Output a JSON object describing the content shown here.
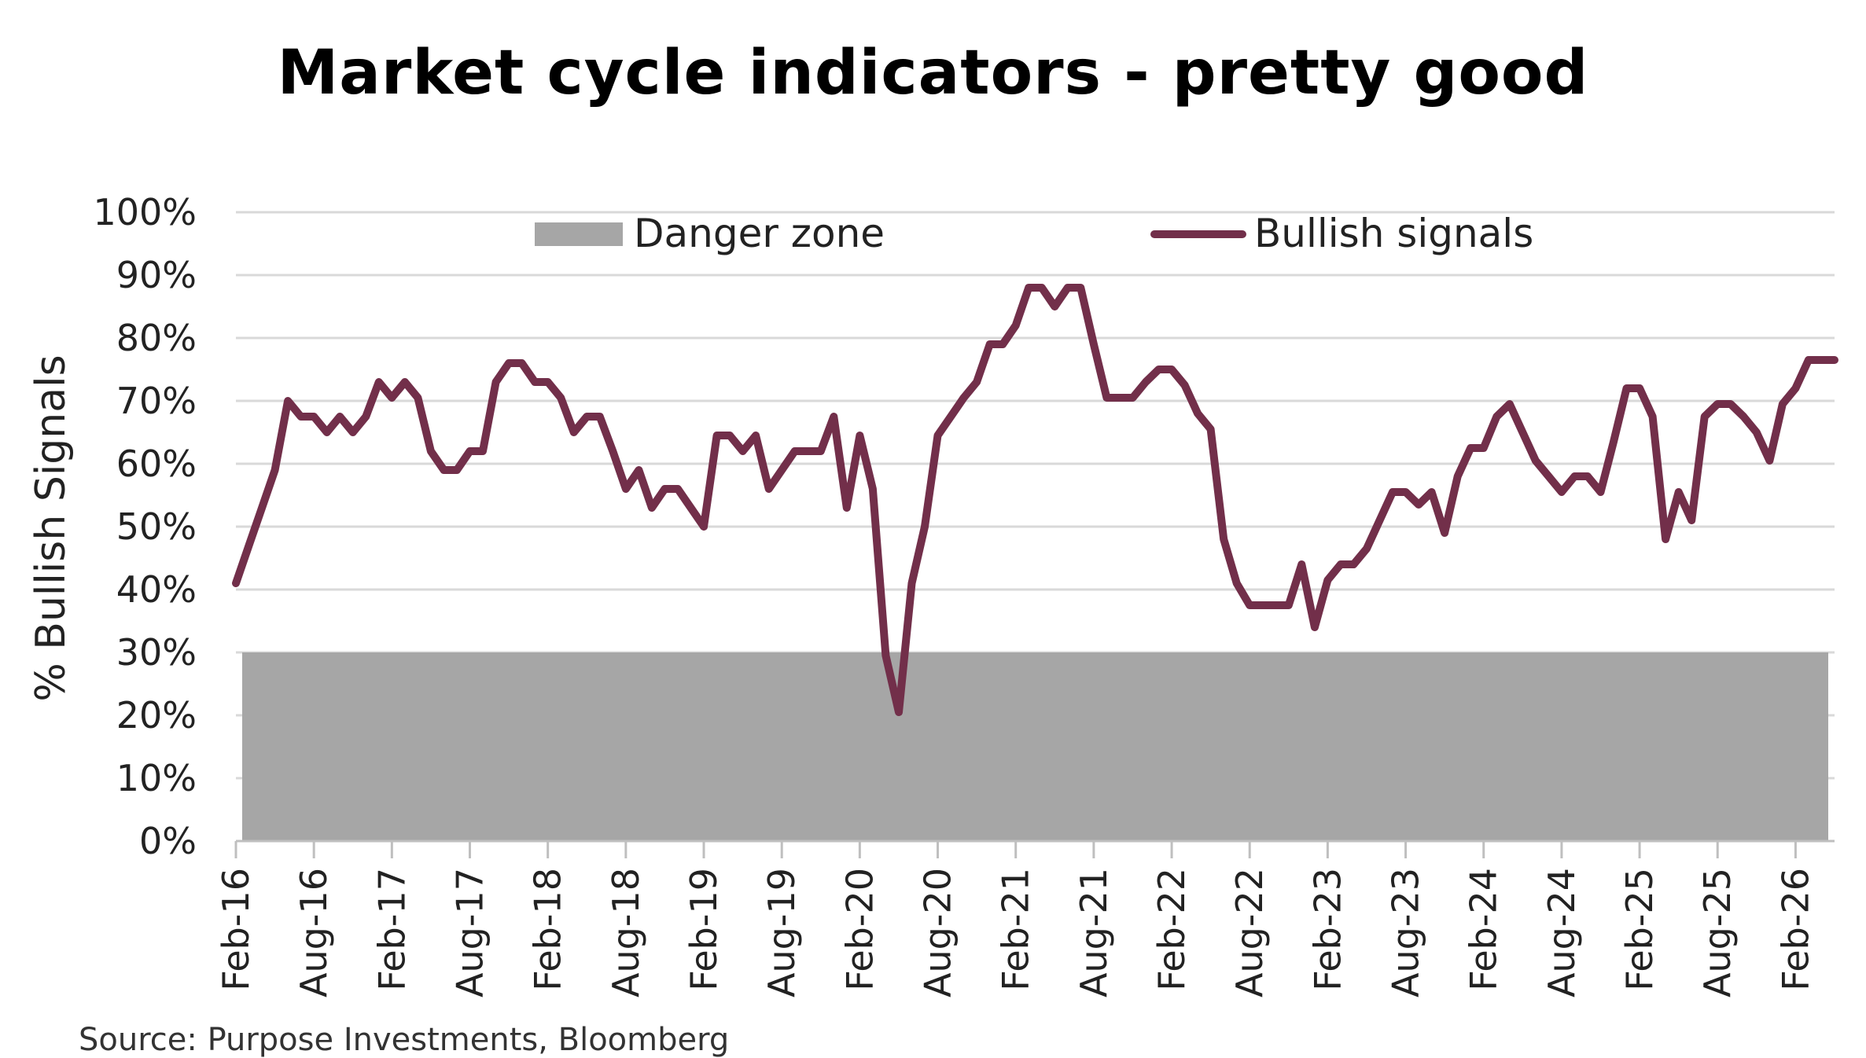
{
  "chart_data": {
    "type": "line",
    "title": "Market cycle indicators - pretty good",
    "ylabel": "% Bullish Signals",
    "xlabel": "",
    "ylim": [
      0,
      100
    ],
    "y_ticks": [
      "0%",
      "10%",
      "20%",
      "30%",
      "40%",
      "50%",
      "60%",
      "70%",
      "80%",
      "90%",
      "100%"
    ],
    "x_ticks": [
      "Feb-16",
      "Aug-16",
      "Feb-17",
      "Aug-17",
      "Feb-18",
      "Aug-18",
      "Feb-19",
      "Aug-19",
      "Feb-20",
      "Aug-20",
      "Feb-21",
      "Aug-21",
      "Feb-22",
      "Aug-22",
      "Feb-23",
      "Aug-23",
      "Feb-24",
      "Aug-24",
      "Feb-25",
      "Aug-25",
      "Feb-26"
    ],
    "x_range": [
      "2016-02",
      "2026-05"
    ],
    "grid": true,
    "legend_position": "top",
    "danger_zone": {
      "name": "Danger zone",
      "from": 0,
      "to": 30,
      "color": "#a6a6a6"
    },
    "series": [
      {
        "name": "Bullish signals",
        "color": "#722f4a",
        "x": [
          "2016-02",
          "2016-03",
          "2016-04",
          "2016-05",
          "2016-06",
          "2016-07",
          "2016-08",
          "2016-09",
          "2016-10",
          "2016-11",
          "2016-12",
          "2017-01",
          "2017-02",
          "2017-03",
          "2017-04",
          "2017-05",
          "2017-06",
          "2017-07",
          "2017-08",
          "2017-09",
          "2017-10",
          "2017-11",
          "2017-12",
          "2018-01",
          "2018-02",
          "2018-03",
          "2018-04",
          "2018-05",
          "2018-06",
          "2018-07",
          "2018-08",
          "2018-09",
          "2018-10",
          "2018-11",
          "2018-12",
          "2019-01",
          "2019-02",
          "2019-03",
          "2019-04",
          "2019-05",
          "2019-06",
          "2019-07",
          "2019-08",
          "2019-09",
          "2019-10",
          "2019-11",
          "2019-12",
          "2020-01",
          "2020-02",
          "2020-03",
          "2020-04",
          "2020-05",
          "2020-06",
          "2020-07",
          "2020-08",
          "2020-09",
          "2020-10",
          "2020-11",
          "2020-12",
          "2021-01",
          "2021-02",
          "2021-03",
          "2021-04",
          "2021-05",
          "2021-06",
          "2021-07",
          "2021-08",
          "2021-09",
          "2021-10",
          "2021-11",
          "2021-12",
          "2022-01",
          "2022-02",
          "2022-03",
          "2022-04",
          "2022-05",
          "2022-06",
          "2022-07",
          "2022-08",
          "2022-09",
          "2022-10",
          "2022-11",
          "2022-12",
          "2023-01",
          "2023-02",
          "2023-03",
          "2023-04",
          "2023-05",
          "2023-06",
          "2023-07",
          "2023-08",
          "2023-09",
          "2023-10",
          "2023-11",
          "2023-12",
          "2024-01",
          "2024-02",
          "2024-03",
          "2024-04",
          "2024-05",
          "2024-06",
          "2024-07",
          "2024-08",
          "2024-09",
          "2024-10",
          "2024-11",
          "2024-12",
          "2025-01",
          "2025-02",
          "2025-03",
          "2025-04",
          "2025-05",
          "2025-06",
          "2025-07",
          "2025-08",
          "2025-09",
          "2025-10",
          "2025-11",
          "2025-12",
          "2026-01",
          "2026-02",
          "2026-03",
          "2026-04",
          "2026-05"
        ],
        "values": [
          41,
          47,
          53,
          59,
          70,
          67.5,
          67.5,
          65,
          67.5,
          65,
          67.5,
          73,
          70.5,
          73,
          70.5,
          62,
          59,
          59,
          62,
          62,
          73,
          76,
          76,
          73,
          73,
          70.5,
          65,
          67.5,
          67.5,
          62,
          56,
          59,
          53,
          56,
          56,
          53,
          50,
          64.5,
          64.5,
          62,
          64.5,
          56,
          59,
          62,
          62,
          62,
          67.5,
          53,
          64.5,
          56,
          29.5,
          20.5,
          41,
          50,
          64.5,
          67.5,
          70.5,
          73,
          79,
          79,
          82,
          88,
          88,
          85,
          88,
          88,
          79,
          70.5,
          70.5,
          70.5,
          73,
          75,
          75,
          72.5,
          68,
          65.5,
          48,
          41,
          37.5,
          37.5,
          37.5,
          37.5,
          44,
          34,
          41.5,
          44,
          44,
          46.5,
          51,
          55.5,
          55.5,
          53.5,
          55.5,
          49,
          58,
          62.5,
          62.5,
          67.5,
          69.5,
          65,
          60.5,
          58,
          55.5,
          58,
          58,
          55.5,
          63.5,
          72,
          72,
          67.5,
          48,
          55.5,
          51,
          67.5,
          69.5,
          69.5,
          67.5,
          65,
          60.5,
          69.5,
          72,
          76.5,
          76.5,
          76.5
        ]
      }
    ]
  },
  "footer": {
    "source": "Source: Purpose Investments, Bloomberg"
  }
}
